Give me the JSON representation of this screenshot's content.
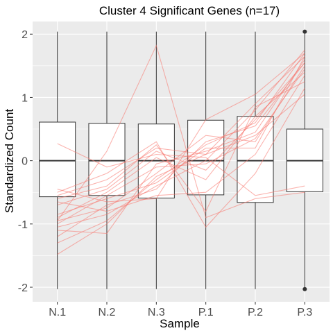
{
  "chart_data": {
    "type": "box",
    "title": "Cluster 4 Significant Genes (n=17)",
    "xlabel": "Sample",
    "ylabel": "Standardized Count",
    "categories": [
      "N.1",
      "N.2",
      "N.3",
      "P.1",
      "P.2",
      "P.3"
    ],
    "yticks": [
      -2,
      -1,
      0,
      1,
      2
    ],
    "ytick_labels": [
      "-2",
      "-1",
      "0",
      "1",
      "2"
    ],
    "ylim": [
      -2.23,
      2.2
    ],
    "grid": true,
    "boxes": [
      {
        "category": "N.1",
        "whisker_low": -2.03,
        "q1": -0.57,
        "median": 0.0,
        "q3": 0.61,
        "whisker_high": 2.04
      },
      {
        "category": "N.2",
        "whisker_low": -2.03,
        "q1": -0.55,
        "median": 0.0,
        "q3": 0.59,
        "whisker_high": 2.04
      },
      {
        "category": "N.3",
        "whisker_low": -2.03,
        "q1": -0.59,
        "median": 0.0,
        "q3": 0.58,
        "whisker_high": 2.04
      },
      {
        "category": "P.1",
        "whisker_low": -2.03,
        "q1": -0.54,
        "median": 0.0,
        "q3": 0.64,
        "whisker_high": 2.04
      },
      {
        "category": "P.2",
        "whisker_low": -2.03,
        "q1": -0.66,
        "median": 0.0,
        "q3": 0.7,
        "whisker_high": 2.04
      },
      {
        "category": "P.3",
        "whisker_low": -2.03,
        "q1": -0.49,
        "median": 0.0,
        "q3": 0.5,
        "whisker_high": 2.04
      }
    ],
    "outliers": [
      {
        "category": "P.3",
        "value": 2.04
      },
      {
        "category": "P.3",
        "value": -2.03
      }
    ],
    "series": [
      {
        "values": [
          -1.48,
          -1.0,
          -0.25,
          0.1,
          0.9,
          1.65
        ]
      },
      {
        "values": [
          -1.3,
          -0.95,
          -0.3,
          0.25,
          0.6,
          1.7
        ]
      },
      {
        "values": [
          -1.2,
          -0.7,
          -0.45,
          0.3,
          0.55,
          1.55
        ]
      },
      {
        "values": [
          -1.1,
          -1.15,
          -0.05,
          0.15,
          0.45,
          1.6
        ]
      },
      {
        "values": [
          -1.05,
          -0.85,
          -0.4,
          0.0,
          0.8,
          1.75
        ]
      },
      {
        "values": [
          -1.0,
          -0.55,
          -0.1,
          -0.05,
          0.35,
          1.45
        ]
      },
      {
        "values": [
          -0.95,
          -0.75,
          -0.2,
          0.4,
          0.3,
          1.5
        ]
      },
      {
        "values": [
          -0.9,
          -0.5,
          0.05,
          -0.3,
          0.7,
          1.4
        ]
      },
      {
        "values": [
          -0.85,
          -0.6,
          -0.35,
          0.2,
          0.2,
          1.65
        ]
      },
      {
        "values": [
          -0.7,
          -0.45,
          0.15,
          -0.15,
          0.65,
          1.55
        ]
      },
      {
        "values": [
          -0.65,
          -0.8,
          -0.55,
          -0.5,
          0.1,
          1.35
        ]
      },
      {
        "values": [
          -0.6,
          -0.4,
          0.25,
          -0.8,
          0.85,
          1.25
        ]
      },
      {
        "values": [
          -0.55,
          -0.3,
          0.2,
          0.1,
          0.4,
          1.05
        ]
      },
      {
        "values": [
          -0.5,
          -0.2,
          0.3,
          -1.05,
          -0.2,
          1.15
        ]
      },
      {
        "values": [
          -0.45,
          -0.65,
          -0.6,
          0.65,
          1.05,
          1.7
        ]
      },
      {
        "values": [
          -0.95,
          0.15,
          1.82,
          -0.9,
          -0.6,
          -0.5
        ]
      },
      {
        "values": [
          0.27,
          -0.1,
          0.1,
          0.05,
          -0.55,
          -0.4
        ]
      }
    ]
  }
}
